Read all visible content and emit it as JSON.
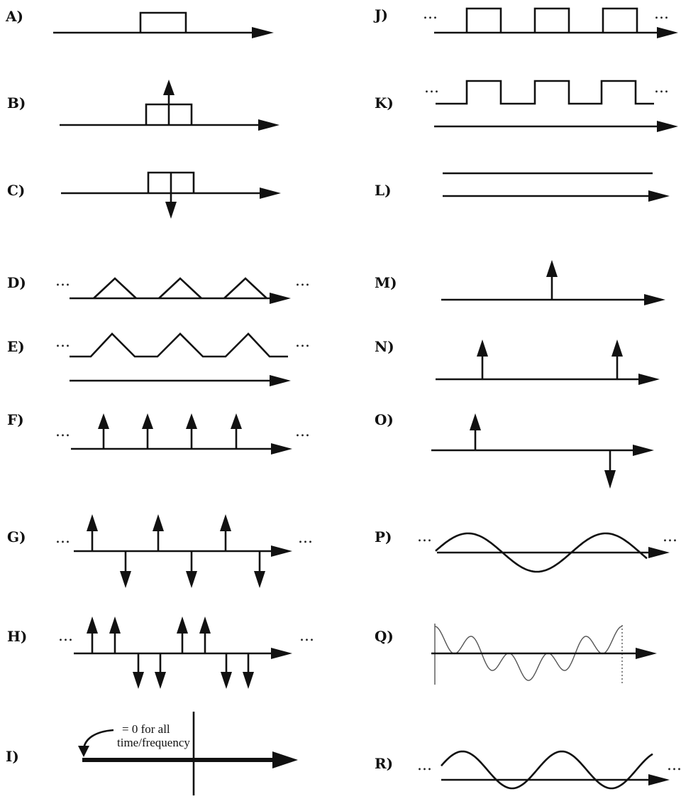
{
  "labels": {
    "a": "A)",
    "b": "B)",
    "c": "C)",
    "d": "D)",
    "e": "E)",
    "f": "F)",
    "g": "G)",
    "h": "H)",
    "i": "I)",
    "j": "J)",
    "k": "K)",
    "l": "L)",
    "m": "M)",
    "n": "N)",
    "o": "O)",
    "p": "P)",
    "q": "Q)",
    "r": "R)"
  },
  "ellipsis": "...",
  "annotation_i": {
    "line1": "= 0 for all",
    "line2": "time/frequency"
  }
}
